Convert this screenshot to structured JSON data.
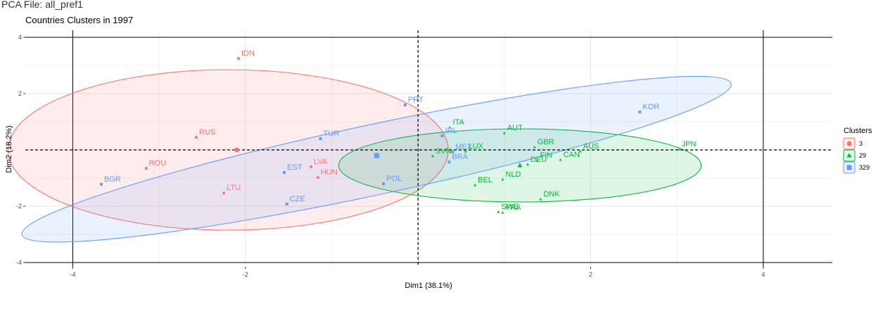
{
  "window": {
    "title": "PCA File: all_pref1"
  },
  "chart_data": {
    "type": "scatter",
    "title": "Countries Clusters in 1997",
    "xlabel": "Dim1 (38.1%)",
    "ylabel": "Dim2 (18.2%)",
    "xlim": [
      -4.55,
      4.8
    ],
    "ylim": [
      -4.15,
      4.25
    ],
    "xticks": [
      -4,
      -2,
      2,
      4
    ],
    "yticks": [
      -4,
      -2,
      2,
      4
    ],
    "xtick_labels": [
      "-4",
      "-2",
      "2",
      "4"
    ],
    "ytick_labels": [
      "-4",
      "-2",
      "2",
      "4"
    ],
    "reference_lines": {
      "x": 0,
      "y": 0,
      "style": "dashed"
    },
    "grid": true,
    "legend": {
      "title": "Clusters",
      "placement": "right"
    },
    "series": [
      {
        "name": "3",
        "color": "#f8766d",
        "marker": "circle",
        "centroid": {
          "x": -2.1,
          "y": 0.0
        },
        "ellipse": {
          "cx": -2.2,
          "cy": 0.0,
          "rx": 2.55,
          "ry": 2.85,
          "angle": 0
        },
        "points": [
          {
            "label": "IDN",
            "x": -2.08,
            "y": 3.25
          },
          {
            "label": "RUS",
            "x": -2.57,
            "y": 0.45
          },
          {
            "label": "ROU",
            "x": -3.15,
            "y": -0.65
          },
          {
            "label": "LVA",
            "x": -1.24,
            "y": -0.6
          },
          {
            "label": "HUN",
            "x": -1.16,
            "y": -0.98
          },
          {
            "label": "LTU",
            "x": -2.25,
            "y": -1.53
          }
        ]
      },
      {
        "name": "29",
        "color": "#00ba38",
        "marker": "triangle",
        "centroid": {
          "x": 1.18,
          "y": -0.55
        },
        "ellipse": {
          "cx": 1.18,
          "cy": -0.55,
          "rx": 2.1,
          "ry": 1.3,
          "angle": 0
        },
        "points": [
          {
            "label": "ITA",
            "x": 0.37,
            "y": 0.8
          },
          {
            "label": "AUT",
            "x": 1.0,
            "y": 0.6
          },
          {
            "label": "GBR",
            "x": 1.35,
            "y": 0.1
          },
          {
            "label": "AUS",
            "x": 1.88,
            "y": -0.05
          },
          {
            "label": "JPN",
            "x": 3.02,
            "y": 0.02
          },
          {
            "label": "SVN",
            "x": 0.17,
            "y": -0.22
          },
          {
            "label": "LUX",
            "x": 0.55,
            "y": -0.05
          },
          {
            "label": "FIN",
            "x": 1.38,
            "y": -0.38
          },
          {
            "label": "CAN",
            "x": 1.65,
            "y": -0.35
          },
          {
            "label": "DEU",
            "x": 1.27,
            "y": -0.52
          },
          {
            "label": "NLD",
            "x": 0.98,
            "y": -1.05
          },
          {
            "label": "BEL",
            "x": 0.66,
            "y": -1.25
          },
          {
            "label": "DNK",
            "x": 1.42,
            "y": -1.75
          },
          {
            "label": "SWE",
            "x": 0.93,
            "y": -2.2
          },
          {
            "label": "FRA",
            "x": 0.98,
            "y": -2.23
          }
        ]
      },
      {
        "name": "329",
        "color": "#619cff",
        "marker": "square",
        "centroid": {
          "x": -0.48,
          "y": -0.2
        },
        "ellipse": {
          "cx": -0.48,
          "cy": -0.33,
          "rx": 4.2,
          "ry": 1.25,
          "angle": 12
        },
        "points": [
          {
            "label": "PRT",
            "x": -0.15,
            "y": 1.6
          },
          {
            "label": "KOR",
            "x": 2.57,
            "y": 1.35
          },
          {
            "label": "TUR",
            "x": -1.13,
            "y": 0.4
          },
          {
            "label": "IRL",
            "x": 0.28,
            "y": 0.5
          },
          {
            "label": "MEX",
            "x": 0.4,
            "y": -0.07
          },
          {
            "label": "BRA",
            "x": 0.36,
            "y": -0.43
          },
          {
            "label": "EST",
            "x": -1.55,
            "y": -0.8
          },
          {
            "label": "POL",
            "x": -0.4,
            "y": -1.2
          },
          {
            "label": "BGR",
            "x": -3.67,
            "y": -1.22
          },
          {
            "label": "CZE",
            "x": -1.52,
            "y": -1.92
          }
        ]
      }
    ]
  }
}
